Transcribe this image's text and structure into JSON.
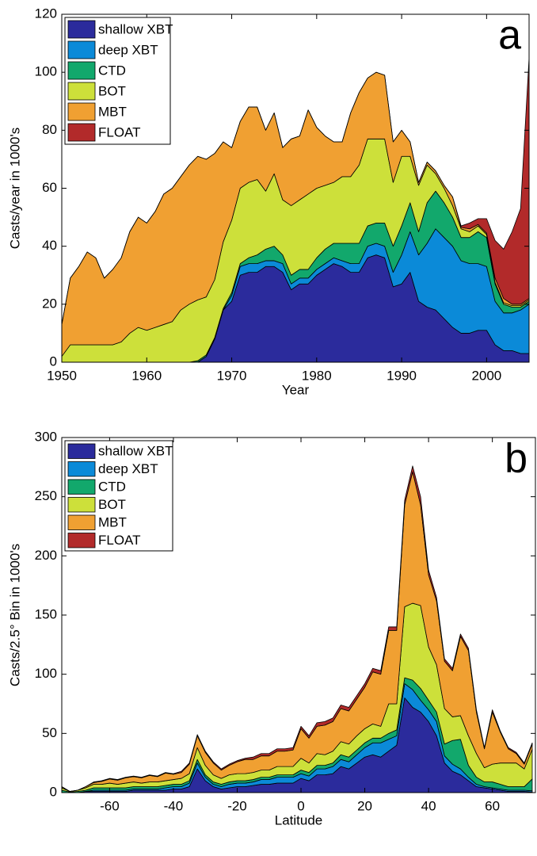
{
  "chart_data": [
    {
      "type": "area",
      "stacked": true,
      "panel_label": "a",
      "xlabel": "Year",
      "ylabel": "Casts/year in 1000's",
      "x": [
        1950,
        1951,
        1952,
        1953,
        1954,
        1955,
        1956,
        1957,
        1958,
        1959,
        1960,
        1961,
        1962,
        1963,
        1964,
        1965,
        1966,
        1967,
        1968,
        1969,
        1970,
        1971,
        1972,
        1973,
        1974,
        1975,
        1976,
        1977,
        1978,
        1979,
        1980,
        1981,
        1982,
        1983,
        1984,
        1985,
        1986,
        1987,
        1988,
        1989,
        1990,
        1991,
        1992,
        1993,
        1994,
        1995,
        1996,
        1997,
        1998,
        1999,
        2000,
        2001,
        2002,
        2003,
        2004,
        2005
      ],
      "xlim": [
        1950,
        2005
      ],
      "ylim": [
        0,
        120
      ],
      "xticks": [
        1950,
        1960,
        1970,
        1980,
        1990,
        2000
      ],
      "yticks": [
        0,
        20,
        40,
        60,
        80,
        100,
        120
      ],
      "series": [
        {
          "name": "shallow XBT",
          "color": "#2b2b9c",
          "values": [
            0,
            0,
            0,
            0,
            0,
            0,
            0,
            0,
            0,
            0,
            0,
            0,
            0,
            0,
            0,
            0,
            0,
            2,
            8,
            18,
            21,
            30,
            31,
            31,
            33,
            33,
            31,
            25,
            27,
            27,
            30,
            32,
            34,
            33,
            31,
            31,
            36,
            37,
            36,
            26,
            27,
            31,
            21,
            19,
            18,
            15,
            12,
            10,
            10,
            11,
            11,
            6,
            4,
            4,
            3,
            3
          ]
        },
        {
          "name": "deep XBT",
          "color": "#0b8ad8",
          "values": [
            0,
            0,
            0,
            0,
            0,
            0,
            0,
            0,
            0,
            0,
            0,
            0,
            0,
            0,
            0,
            0,
            0,
            0,
            0,
            0,
            2,
            3,
            3,
            3,
            2,
            2,
            3,
            2,
            2,
            2,
            2,
            2,
            2,
            2,
            3,
            3,
            4,
            4,
            4,
            5,
            10,
            14,
            16,
            22,
            28,
            28,
            28,
            25,
            24,
            23,
            22,
            15,
            13,
            13,
            15,
            17
          ]
        },
        {
          "name": "CTD",
          "color": "#12a86c",
          "values": [
            0,
            0,
            0,
            0,
            0,
            0,
            0,
            0,
            0,
            0,
            0,
            0,
            0,
            0,
            0,
            0,
            0.5,
            0.5,
            0.5,
            0.5,
            1,
            1,
            2,
            3,
            4,
            5,
            3,
            3,
            3,
            3,
            4,
            5,
            5,
            6,
            7,
            7,
            7,
            7,
            8,
            9,
            10,
            10,
            8,
            14,
            13,
            12,
            10,
            8,
            9,
            11,
            10,
            6,
            3,
            2,
            1,
            1
          ]
        },
        {
          "name": "BOT",
          "color": "#cde03a",
          "values": [
            2,
            6,
            6,
            6,
            6,
            6,
            6,
            7,
            10,
            12,
            11,
            12,
            13,
            14,
            18,
            20,
            21,
            20,
            20,
            23,
            25,
            26,
            26,
            26,
            20,
            25,
            19,
            24,
            24,
            26,
            24,
            22,
            21,
            23,
            23,
            27,
            30,
            29,
            29,
            22,
            24,
            16,
            16,
            13,
            6,
            5,
            4,
            3,
            2,
            2,
            1,
            0.5,
            0.5,
            0.5,
            0.5,
            0.5
          ]
        },
        {
          "name": "MBT",
          "color": "#f0a032",
          "values": [
            11,
            23,
            27,
            32,
            30,
            23,
            26,
            29,
            35,
            38,
            37,
            40,
            45,
            46,
            46,
            48,
            49.5,
            47.5,
            43.5,
            34.5,
            25,
            23,
            26,
            25,
            21,
            21,
            18,
            23,
            22,
            29,
            21,
            17,
            14,
            12,
            22,
            25,
            21,
            23,
            22,
            14,
            9,
            5,
            1,
            1,
            1,
            1,
            3,
            0.5,
            1,
            0.5,
            0.5,
            1.5,
            1.5,
            0.5,
            0.5,
            0.5
          ]
        },
        {
          "name": "FLOAT",
          "color": "#b22a2a",
          "values": [
            0,
            0,
            0,
            0,
            0,
            0,
            0,
            0,
            0,
            0,
            0,
            0,
            0,
            0,
            0,
            0,
            0,
            0,
            0,
            0,
            0,
            0,
            0,
            0,
            0,
            0,
            0,
            0,
            0,
            0,
            0,
            0,
            0,
            0,
            0,
            0,
            0,
            0,
            0,
            0,
            0,
            0,
            0,
            0,
            0,
            0,
            0,
            0.5,
            2,
            2,
            5,
            13,
            17,
            25,
            33,
            83
          ]
        }
      ]
    },
    {
      "type": "area",
      "stacked": true,
      "panel_label": "b",
      "xlabel": "Latitude",
      "ylabel": "Casts/2.5° Bin in 1000's",
      "x": [
        -75,
        -72.5,
        -70,
        -67.5,
        -65,
        -62.5,
        -60,
        -57.5,
        -55,
        -52.5,
        -50,
        -47.5,
        -45,
        -42.5,
        -40,
        -37.5,
        -35,
        -32.5,
        -30,
        -27.5,
        -25,
        -22.5,
        -20,
        -17.5,
        -15,
        -12.5,
        -10,
        -7.5,
        -5,
        -2.5,
        0,
        2.5,
        5,
        7.5,
        10,
        12.5,
        15,
        17.5,
        20,
        22.5,
        25,
        27.5,
        30,
        32.5,
        35,
        37.5,
        40,
        42.5,
        45,
        47.5,
        50,
        52.5,
        55,
        57.5,
        60,
        62.5,
        65,
        67.5,
        70,
        72.5
      ],
      "xlim": [
        -75,
        73.5
      ],
      "ylim": [
        0,
        300
      ],
      "xticks": [
        -60,
        -40,
        -20,
        0,
        20,
        40,
        60
      ],
      "yticks": [
        0,
        50,
        100,
        150,
        200,
        250,
        300
      ],
      "series": [
        {
          "name": "shallow XBT",
          "color": "#2b2b9c",
          "values": [
            0,
            0,
            0,
            1,
            1,
            1,
            1,
            1,
            1,
            2,
            2,
            2,
            2,
            2,
            3,
            3,
            5,
            20,
            10,
            5,
            3,
            4,
            5,
            5,
            6,
            7,
            7,
            8,
            8,
            8,
            12,
            10,
            15,
            15,
            16,
            22,
            20,
            25,
            30,
            32,
            30,
            35,
            40,
            80,
            72,
            68,
            60,
            48,
            25,
            18,
            15,
            10,
            5,
            4,
            3,
            2,
            1,
            1,
            1,
            0.5
          ]
        },
        {
          "name": "deep XBT",
          "color": "#0b8ad8",
          "values": [
            0,
            0,
            0,
            0,
            1,
            1,
            1,
            1,
            1,
            1,
            1,
            1,
            1,
            2,
            2,
            2,
            3,
            5,
            3,
            2,
            2,
            3,
            3,
            3,
            3,
            4,
            4,
            5,
            5,
            5,
            4,
            4,
            5,
            5,
            6,
            6,
            6,
            7,
            8,
            10,
            12,
            10,
            8,
            12,
            15,
            10,
            10,
            12,
            6,
            6,
            5,
            3,
            2,
            1,
            1,
            1,
            1,
            1,
            1,
            1
          ]
        },
        {
          "name": "CTD",
          "color": "#12a86c",
          "values": [
            2,
            0.5,
            1,
            1,
            2,
            2,
            2,
            2,
            2,
            2,
            2,
            2,
            2,
            2,
            2,
            2,
            2,
            3,
            2,
            2,
            2,
            2,
            2,
            2,
            2,
            2,
            2,
            2,
            2,
            2,
            3,
            3,
            3,
            3,
            3,
            4,
            4,
            4,
            4,
            4,
            4,
            5,
            5,
            5,
            8,
            10,
            8,
            8,
            10,
            20,
            25,
            10,
            6,
            4,
            5,
            4,
            3,
            3,
            3,
            10
          ]
        },
        {
          "name": "BOT",
          "color": "#cde03a",
          "values": [
            2,
            0.5,
            1,
            2,
            3,
            3,
            4,
            3,
            4,
            4,
            3,
            4,
            4,
            4,
            4,
            5,
            6,
            10,
            8,
            6,
            5,
            6,
            6,
            6,
            6,
            6,
            6,
            7,
            7,
            7,
            10,
            8,
            10,
            9,
            10,
            11,
            11,
            12,
            12,
            12,
            10,
            25,
            22,
            60,
            65,
            70,
            45,
            40,
            30,
            20,
            20,
            25,
            20,
            12,
            15,
            18,
            20,
            20,
            15,
            25
          ]
        },
        {
          "name": "MBT",
          "color": "#f0a032",
          "values": [
            1,
            0,
            0,
            1,
            1.5,
            2.5,
            3.5,
            3.5,
            4.5,
            4.5,
            4.5,
            5.5,
            4.5,
            6.5,
            4.5,
            5,
            8,
            10,
            11,
            10,
            7,
            8,
            10,
            12,
            11,
            12,
            12,
            13,
            13,
            14,
            25,
            21,
            23,
            25,
            25,
            28,
            28,
            31,
            35,
            44,
            44,
            62,
            62,
            86,
            111,
            85,
            61,
            54,
            40,
            39,
            67,
            72,
            35,
            16,
            44,
            26,
            12,
            8,
            4,
            4.5
          ]
        },
        {
          "name": "FLOAT",
          "color": "#b22a2a",
          "values": [
            0,
            0,
            0,
            0,
            0.5,
            0.5,
            0.5,
            0.5,
            0.5,
            0.5,
            0.5,
            0.5,
            0.5,
            0.5,
            0.5,
            1,
            1,
            1,
            1,
            1,
            1,
            1,
            1,
            1,
            2,
            2,
            2,
            2,
            2,
            2,
            2,
            2,
            3,
            3,
            3,
            3,
            3,
            3,
            3,
            3,
            3,
            3,
            3,
            4,
            5,
            7,
            4,
            3,
            2,
            2,
            2,
            2,
            2,
            1,
            2,
            1,
            1,
            1,
            1,
            1
          ]
        }
      ]
    }
  ]
}
